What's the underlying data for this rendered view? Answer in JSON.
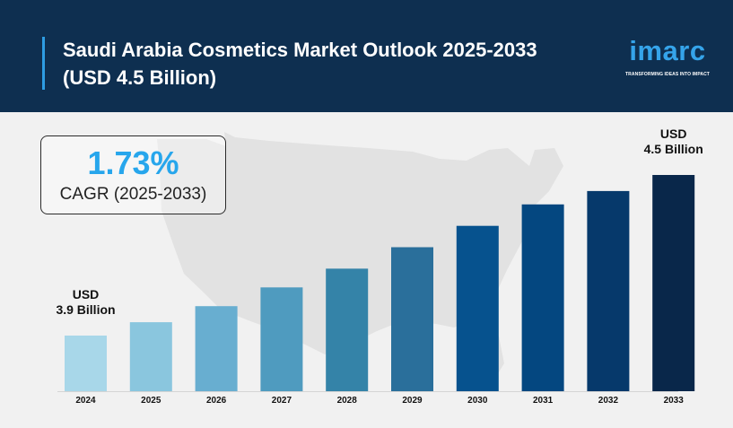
{
  "header": {
    "title_line1": "Saudi Arabia Cosmetics Market Outlook 2025-2033",
    "title_line2": "(USD 4.5 Billion)"
  },
  "logo": {
    "word": "imarc",
    "tagline": "TRANSFORMING IDEAS INTO IMPACT"
  },
  "cagr": {
    "value": "1.73%",
    "label": "CAGR (2025-2033)"
  },
  "colors": {
    "header_bg": "#0e2f50",
    "accent": "#2e9de3",
    "cagr_value": "#27a6ec",
    "background": "#f1f1f1",
    "map": "#e2e2e2"
  },
  "chart_data": {
    "type": "bar",
    "title": "Saudi Arabia Cosmetics Market Outlook 2025-2033",
    "xlabel": "",
    "ylabel": "",
    "categories": [
      "2024",
      "2025",
      "2026",
      "2027",
      "2028",
      "2029",
      "2030",
      "2031",
      "2032",
      "2033"
    ],
    "values": [
      3.9,
      3.95,
      4.01,
      4.08,
      4.15,
      4.23,
      4.31,
      4.39,
      4.44,
      4.5
    ],
    "bar_colors": [
      "#a8d7e9",
      "#8ac6de",
      "#68aed0",
      "#4f9bbf",
      "#3483a8",
      "#2a6f9b",
      "#06528e",
      "#044780",
      "#06396b",
      "#09274a"
    ],
    "annotations": [
      {
        "category": "2024",
        "line1": "USD",
        "line2": "3.9 Billion"
      },
      {
        "category": "2033",
        "line1": "USD",
        "line2": "4.5 Billion"
      }
    ],
    "grid": false,
    "legend": "none"
  }
}
